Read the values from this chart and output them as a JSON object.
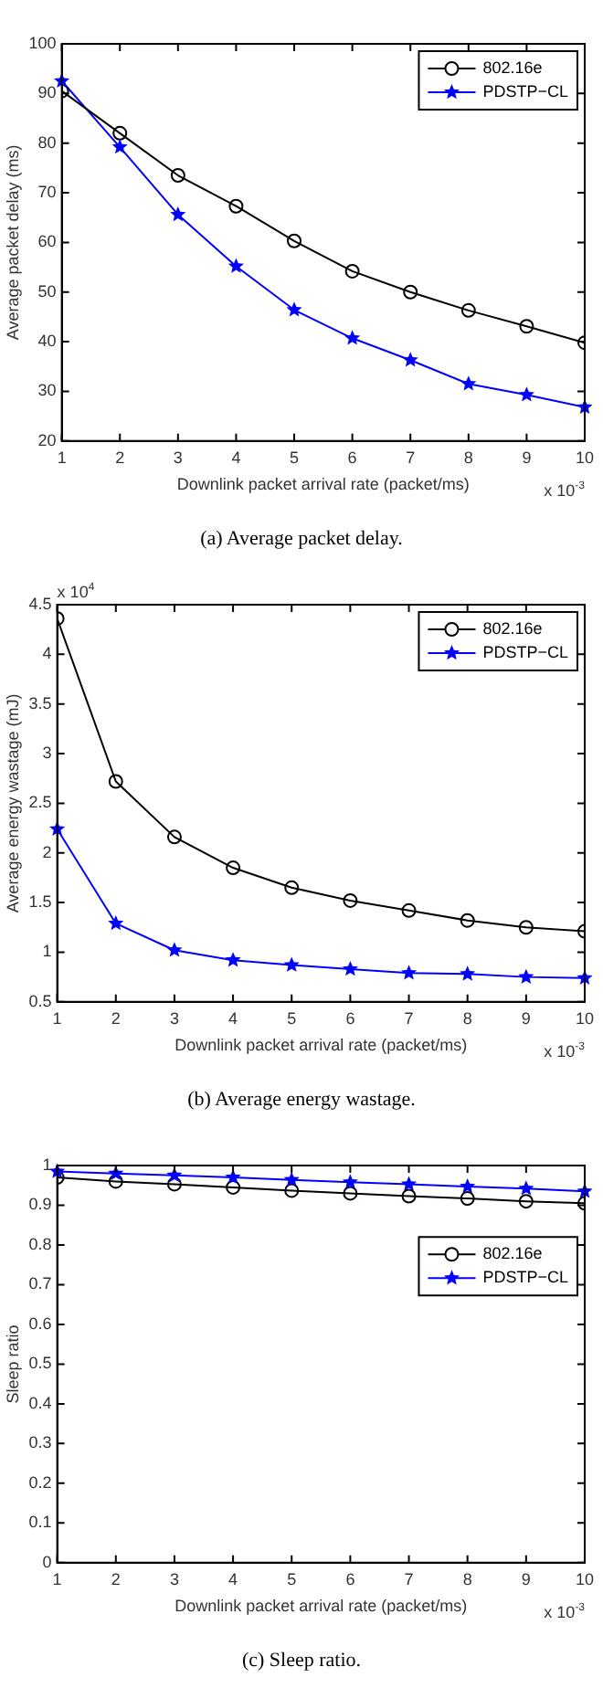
{
  "chart_data": [
    {
      "type": "line",
      "title": "(a)  Average packet delay.",
      "xlabel": "Downlink packet arrival rate (packet/ms)",
      "ylabel": "Average packet delay (ms)",
      "x": [
        1,
        2,
        3,
        4,
        5,
        6,
        7,
        8,
        9,
        10
      ],
      "series": [
        {
          "name": "802.16e",
          "color": "#000000",
          "marker": "circle",
          "values": [
            90.5,
            82,
            73.5,
            67.3,
            60.3,
            54.2,
            50,
            46.3,
            43.1,
            39.8
          ]
        },
        {
          "name": "PDSTP−CL",
          "color": "#0000ff",
          "marker": "star",
          "values": [
            92.5,
            79.2,
            65.6,
            55.2,
            46.4,
            40.7,
            36.3,
            31.5,
            29.3,
            26.8
          ]
        }
      ],
      "xlim": [
        1,
        10
      ],
      "xticks": [
        1,
        2,
        3,
        4,
        5,
        6,
        7,
        8,
        9,
        10
      ],
      "ylim": [
        20,
        100
      ],
      "yticks": [
        20,
        30,
        40,
        50,
        60,
        70,
        80,
        90,
        100
      ],
      "grid": false,
      "legend": "top right",
      "line_style": "solid",
      "annotations": [
        "x 10$^{-3}$"
      ]
    },
    {
      "type": "line",
      "title": "(b)  Average energy wastage.",
      "xlabel": "Downlink packet arrival rate (packet/ms)",
      "ylabel": "Average energy wastage (mJ)",
      "x": [
        1,
        2,
        3,
        4,
        5,
        6,
        7,
        8,
        9,
        10
      ],
      "series": [
        {
          "name": "802.16e",
          "color": "#000000",
          "marker": "circle",
          "values": [
            4.36,
            2.72,
            2.16,
            1.85,
            1.65,
            1.52,
            1.42,
            1.32,
            1.25,
            1.21
          ]
        },
        {
          "name": "PDSTP−CL",
          "color": "#0000ff",
          "marker": "star",
          "values": [
            2.24,
            1.29,
            1.02,
            0.92,
            0.87,
            0.83,
            0.79,
            0.78,
            0.75,
            0.74
          ]
        }
      ],
      "xlim": [
        1,
        10
      ],
      "xticks": [
        1,
        2,
        3,
        4,
        5,
        6,
        7,
        8,
        9,
        10
      ],
      "ylim": [
        0.5,
        4.5
      ],
      "yticks": [
        0.5,
        1,
        1.5,
        2,
        2.5,
        3,
        3.5,
        4,
        4.5
      ],
      "grid": false,
      "legend": "top right",
      "line_style": "solid",
      "annotations": [
        "x 10$^{-3}$",
        "x 10$^{4}$"
      ]
    },
    {
      "type": "line",
      "title": "(c)  Sleep ratio.",
      "xlabel": "Downlink packet arrival rate (packet/ms)",
      "ylabel": "Sleep ratio",
      "x": [
        1,
        2,
        3,
        4,
        5,
        6,
        7,
        8,
        9,
        10
      ],
      "series": [
        {
          "name": "802.16e",
          "color": "#000000",
          "marker": "circle",
          "values": [
            0.97,
            0.96,
            0.953,
            0.945,
            0.937,
            0.93,
            0.923,
            0.917,
            0.91,
            0.905
          ]
        },
        {
          "name": "PDSTP−CL",
          "color": "#0000ff",
          "marker": "star",
          "values": [
            0.985,
            0.98,
            0.975,
            0.97,
            0.964,
            0.958,
            0.953,
            0.947,
            0.942,
            0.935
          ]
        }
      ],
      "xlim": [
        1,
        10
      ],
      "xticks": [
        1,
        2,
        3,
        4,
        5,
        6,
        7,
        8,
        9,
        10
      ],
      "ylim": [
        0,
        1
      ],
      "yticks": [
        0,
        0.1,
        0.2,
        0.3,
        0.4,
        0.5,
        0.6,
        0.7,
        0.8,
        0.9,
        1
      ],
      "grid": false,
      "legend": "right",
      "line_style": "solid",
      "annotations": [
        "x 10$^{-3}$"
      ]
    }
  ]
}
